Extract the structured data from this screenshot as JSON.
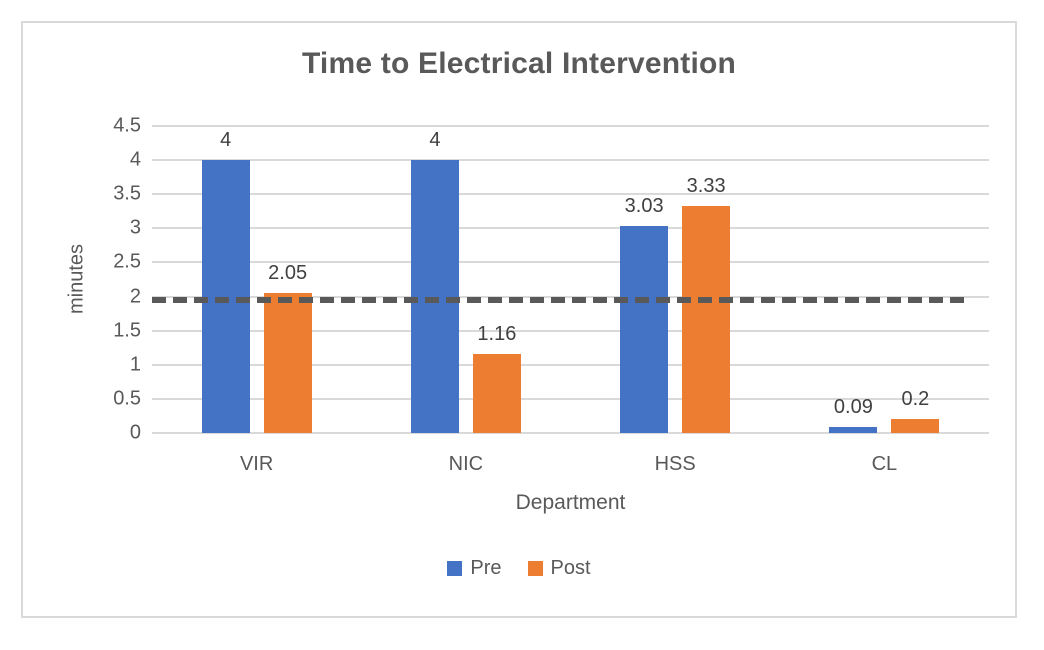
{
  "chart_data": {
    "type": "bar",
    "title": "Time to Electrical Intervention",
    "xlabel": "Department",
    "ylabel": "minutes",
    "categories": [
      "VIR",
      "NIC",
      "HSS",
      "CL"
    ],
    "series": [
      {
        "name": "Pre",
        "color": "#4472C4",
        "values": [
          4,
          4,
          3.03,
          0.09
        ],
        "labels": [
          "4",
          "4",
          "3.03",
          "0.09"
        ]
      },
      {
        "name": "Post",
        "color": "#ED7D31",
        "values": [
          2.05,
          1.16,
          3.33,
          0.2
        ],
        "labels": [
          "2.05",
          "1.16",
          "3.33",
          "0.2"
        ]
      }
    ],
    "ylim": [
      0,
      4.5
    ],
    "ytick_step": 0.5,
    "yticks": [
      "4.5",
      "4",
      "3.5",
      "3",
      "2.5",
      "2",
      "1.5",
      "1",
      "0.5",
      "0"
    ],
    "grid": true,
    "legend_position": "bottom",
    "reference_line": {
      "value": 1.95,
      "style": "dashed",
      "color": "#595959"
    }
  },
  "colors": {
    "background": "#FFFFFF",
    "frame_border": "#D9D9D9",
    "gridline": "#D9D9D9",
    "title_text": "#595959",
    "axis_text": "#595959",
    "data_label_text": "#404040"
  }
}
